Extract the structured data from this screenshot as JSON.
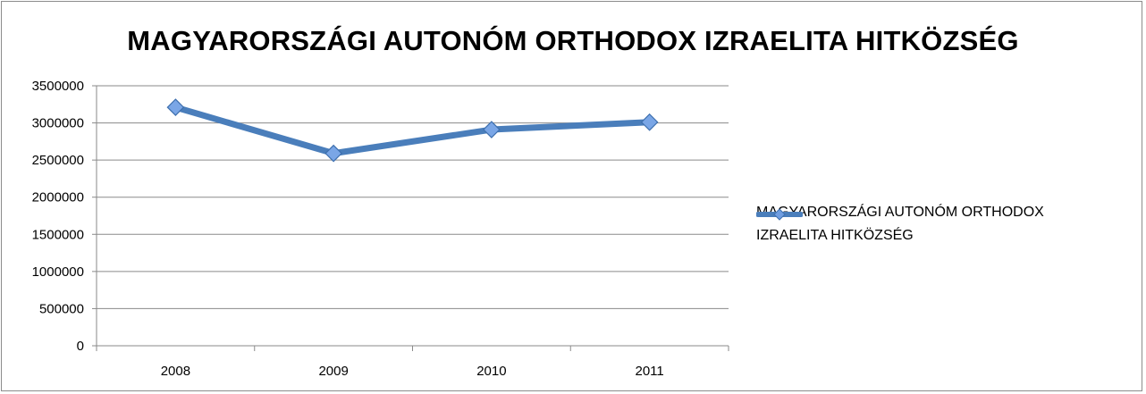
{
  "chart_data": {
    "type": "line",
    "title": "MAGYARORSZÁGI AUTONÓM ORTHODOX IZRAELITA HITKÖZSÉG",
    "xlabel": "",
    "ylabel": "",
    "categories": [
      "2008",
      "2009",
      "2010",
      "2011"
    ],
    "series": [
      {
        "name": "MAGYARORSZÁGI AUTONÓM ORTHODOX IZRAELITA HITKÖZSÉG",
        "values": [
          3210000,
          2590000,
          2910000,
          3010000
        ],
        "color": "#4a7ebb",
        "marker": "diamond"
      }
    ],
    "ylim": [
      0,
      3500000
    ],
    "yticks": [
      0,
      500000,
      1000000,
      1500000,
      2000000,
      2500000,
      3000000,
      3500000
    ],
    "ytick_labels": [
      "0",
      "500000",
      "1000000",
      "1500000",
      "2000000",
      "2500000",
      "3000000",
      "3500000"
    ],
    "grid": true,
    "legend_position": "right"
  }
}
